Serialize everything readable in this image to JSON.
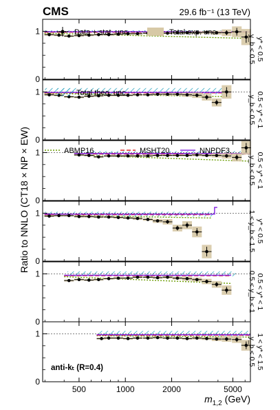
{
  "header": {
    "experiment": "CMS",
    "luminosity": "29.6 fb⁻¹ (13 TeV)"
  },
  "chart_data": {
    "type": "scatter",
    "ylabel": "Ratio to NNLO (CT18 × NP × EW)",
    "xlabel_var": "m",
    "xlabel_sub": "1,2",
    "xlabel_unit": "(GeV)",
    "xscale": "log",
    "xlim": [
      290,
      6500
    ],
    "xticks": [
      500,
      1000,
      2000,
      5000
    ],
    "xtick_labels": [
      "500",
      "1000",
      "2000",
      "5000"
    ],
    "ylim": [
      0,
      1.25
    ],
    "yticks": [
      0,
      1
    ],
    "legend_data": "Data + stat. unc.",
    "legend_exp": "Total exp. unc.",
    "legend_theo": "Total theo. unc.",
    "legend_pdfs": [
      "ABMP16",
      "MSHT20",
      "NNPDF3."
    ],
    "algo_label": "anti-kₜ (R=0.4)",
    "colors": {
      "abmp": "#6a9c00",
      "msht": "#e0282a",
      "nnpdf": "#8a2be2",
      "theo": "#2aa3bf",
      "exp": "#d7c9a6"
    },
    "panels": [
      {
        "bin_top": "y* < 0.5",
        "bin_bottom": "y_b < 0.5",
        "x": [
          320,
          370,
          430,
          500,
          580,
          670,
          780,
          900,
          1040,
          1200,
          1400,
          1620,
          1880,
          2180,
          2520,
          2920,
          3380,
          3920,
          4550,
          5300,
          6100
        ],
        "y": [
          0.93,
          0.92,
          0.9,
          0.91,
          0.92,
          0.93,
          0.93,
          0.94,
          0.95,
          0.95,
          0.96,
          0.96,
          0.96,
          0.97,
          0.97,
          0.97,
          0.98,
          0.97,
          0.97,
          0.99,
          0.88
        ],
        "yerr": [
          0.01,
          0.01,
          0.01,
          0.01,
          0.01,
          0.01,
          0.01,
          0.01,
          0.01,
          0.01,
          0.01,
          0.01,
          0.01,
          0.01,
          0.01,
          0.02,
          0.02,
          0.03,
          0.05,
          0.08,
          0.12
        ],
        "theo": [
          300,
          6500,
          0.97,
          1.02
        ],
        "nnpdf": 0.99,
        "msht": 0.98,
        "abmp": [
          0.96,
          0.85
        ]
      },
      {
        "bin_top": "0.5 < y* < 1",
        "bin_bottom": "y_b < 0.5",
        "x": [
          320,
          370,
          430,
          500,
          580,
          670,
          780,
          900,
          1040,
          1200,
          1400,
          1620,
          1880,
          2180,
          2520,
          2920,
          3380,
          3920,
          4550
        ],
        "y": [
          0.94,
          0.93,
          0.9,
          0.89,
          0.91,
          0.92,
          0.93,
          0.93,
          0.93,
          0.94,
          0.94,
          0.95,
          0.95,
          0.95,
          0.94,
          0.93,
          0.89,
          0.78,
          1.0
        ],
        "yerr": [
          0.01,
          0.01,
          0.01,
          0.01,
          0.01,
          0.01,
          0.01,
          0.01,
          0.01,
          0.01,
          0.01,
          0.01,
          0.02,
          0.02,
          0.03,
          0.04,
          0.05,
          0.06,
          0.1
        ],
        "theo": [
          300,
          4800,
          0.95,
          1.08
        ],
        "nnpdf": 0.99,
        "msht": 0.98,
        "abmp": [
          0.97,
          0.9
        ]
      },
      {
        "bin_top": "0.5 < y* < 1",
        "bin_bottom": "y_b < 0.5",
        "x": [
          500,
          580,
          670,
          780,
          900,
          1040,
          1200,
          1400,
          1620,
          1880,
          2180,
          2520,
          2920,
          3380,
          3920,
          4550,
          5300,
          6100
        ],
        "y": [
          0.95,
          0.94,
          0.91,
          0.93,
          0.93,
          0.93,
          0.93,
          0.93,
          0.94,
          0.94,
          0.94,
          0.94,
          0.95,
          0.94,
          0.94,
          0.93,
          0.9,
          1.1
        ],
        "yerr": [
          0.01,
          0.01,
          0.01,
          0.01,
          0.01,
          0.01,
          0.01,
          0.01,
          0.01,
          0.01,
          0.01,
          0.01,
          0.02,
          0.02,
          0.03,
          0.04,
          0.06,
          0.1
        ],
        "theo": [
          500,
          6500,
          0.95,
          1.03
        ],
        "nnpdf": 0.98,
        "msht": 0.97,
        "abmp": [
          0.95,
          0.82
        ]
      },
      {
        "bin_top": "y* < 0.5",
        "bin_bottom": "1 < y_b < 1.5",
        "x": [
          320,
          370,
          430,
          500,
          580,
          670,
          780,
          900,
          1040,
          1200,
          1400,
          1620,
          1880,
          2180,
          2520,
          2920,
          3380
        ],
        "y": [
          0.94,
          0.95,
          0.95,
          0.93,
          0.93,
          0.92,
          0.92,
          0.91,
          0.9,
          0.89,
          0.87,
          0.84,
          0.82,
          0.69,
          0.75,
          0.61,
          0.2
        ],
        "yerr": [
          0.01,
          0.01,
          0.01,
          0.01,
          0.01,
          0.01,
          0.01,
          0.01,
          0.01,
          0.02,
          0.02,
          0.03,
          0.04,
          0.05,
          0.06,
          0.08,
          0.1
        ],
        "theo": [
          300,
          3800,
          0.93,
          1.03
        ],
        "nnpdf": 0.98,
        "msht": 0.97,
        "abmp": [
          0.96,
          0.9
        ],
        "step": [
          3000,
          3800,
          1.12
        ]
      },
      {
        "bin_top": "0.5 < y* < 1",
        "bin_bottom": "0.5 < y_b < 1",
        "x": [
          430,
          500,
          580,
          670,
          780,
          900,
          1040,
          1200,
          1400,
          1620,
          1880,
          2180,
          2520,
          2920,
          3380,
          3920,
          4550
        ],
        "y": [
          0.86,
          0.88,
          0.87,
          0.88,
          0.9,
          0.91,
          0.91,
          0.93,
          0.93,
          0.92,
          0.93,
          0.91,
          0.9,
          0.88,
          0.84,
          0.78,
          0.66
        ],
        "yerr": [
          0.01,
          0.01,
          0.01,
          0.01,
          0.01,
          0.01,
          0.01,
          0.01,
          0.01,
          0.01,
          0.02,
          0.02,
          0.03,
          0.03,
          0.04,
          0.05,
          0.07
        ],
        "theo": [
          420,
          5200,
          0.95,
          1.05
        ],
        "nnpdf": 0.97,
        "msht": 0.96,
        "abmp": [
          0.94,
          0.8
        ]
      },
      {
        "bin_top": "1 < y* < 1.5",
        "bin_bottom": "y_b < 0.5",
        "x": [
          700,
          780,
          900,
          1040,
          1200,
          1400,
          1620,
          1880,
          2180,
          2520,
          2920,
          3380,
          3920,
          4550,
          5300,
          6100
        ],
        "y": [
          0.9,
          0.91,
          0.91,
          0.9,
          0.91,
          0.91,
          0.92,
          0.91,
          0.91,
          0.9,
          0.91,
          0.9,
          0.89,
          0.89,
          0.88,
          0.76
        ],
        "yerr": [
          0.01,
          0.01,
          0.01,
          0.01,
          0.01,
          0.01,
          0.01,
          0.01,
          0.01,
          0.01,
          0.02,
          0.02,
          0.03,
          0.04,
          0.05,
          0.08
        ],
        "theo": [
          650,
          6500,
          0.95,
          1.06
        ],
        "nnpdf": 0.98,
        "msht": 0.97,
        "abmp": [
          0.96,
          0.93
        ]
      }
    ]
  }
}
